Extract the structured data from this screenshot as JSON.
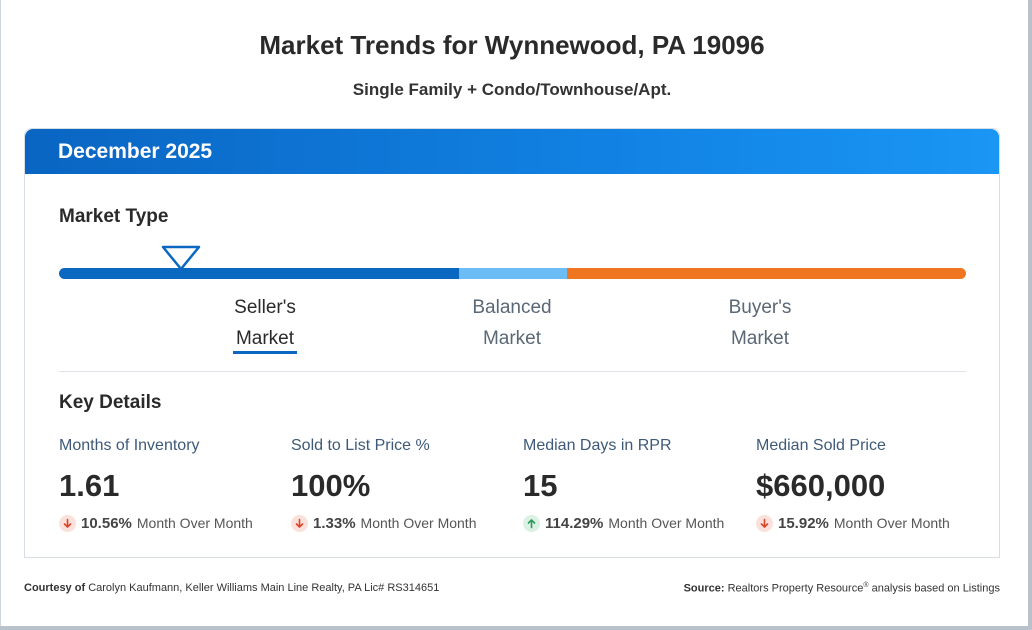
{
  "page": {
    "title": "Market Trends for Wynnewood, PA 19096",
    "subtitle": "Single Family + Condo/Townhouse/Apt."
  },
  "card": {
    "period": "December 2025"
  },
  "market_type": {
    "heading": "Market Type",
    "labels": {
      "seller": [
        "Seller's",
        "Market"
      ],
      "balanced": [
        "Balanced",
        "Market"
      ],
      "buyer": [
        "Buyer's",
        "Market"
      ]
    },
    "selected": "Seller's Market",
    "colors": {
      "seller": "#0a68c0",
      "balanced": "#6cbcf6",
      "buyer": "#ef7520"
    }
  },
  "key_details": {
    "heading": "Key Details",
    "items": [
      {
        "label": "Months of Inventory",
        "value": "1.61",
        "change": "10.56%",
        "direction": "down",
        "period": "Month Over Month"
      },
      {
        "label": "Sold to List Price %",
        "value": "100%",
        "change": "1.33%",
        "direction": "down",
        "period": "Month Over Month"
      },
      {
        "label": "Median Days in RPR",
        "value": "15",
        "change": "114.29%",
        "direction": "up",
        "period": "Month Over Month"
      },
      {
        "label": "Median Sold Price",
        "value": "$660,000",
        "change": "15.92%",
        "direction": "down",
        "period": "Month Over Month"
      }
    ]
  },
  "footer": {
    "courtesy_label": "Courtesy of",
    "courtesy_text": "Carolyn Kaufmann, Keller Williams Main Line Realty, PA Lic# RS314651",
    "source_label": "Source:",
    "source_name": "Realtors Property Resource",
    "source_mark": "®",
    "source_text": "analysis based on Listings"
  },
  "colors": {
    "header_blue": "#0a65c2",
    "down_arrow": "#d9442b",
    "up_arrow": "#2f9a5c"
  }
}
